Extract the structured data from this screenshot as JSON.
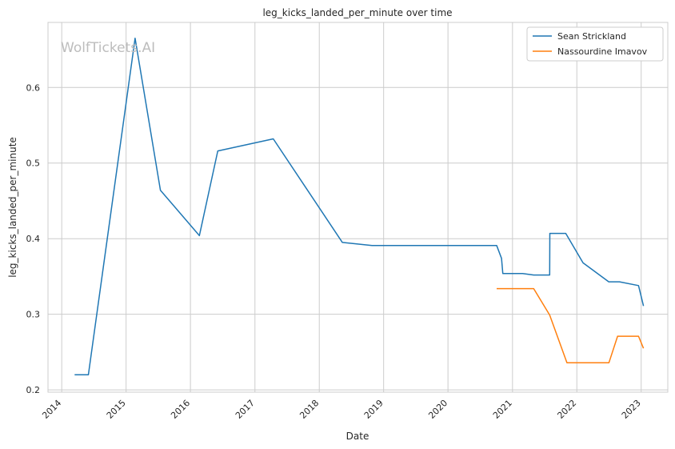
{
  "chart_data": {
    "type": "line",
    "title": "leg_kicks_landed_per_minute over time",
    "xlabel": "Date",
    "ylabel": "leg_kicks_landed_per_minute",
    "watermark": "WolfTickets.AI",
    "xlim": [
      "2013-10-15",
      "2023-06-01"
    ],
    "ylim": [
      0.197,
      0.686
    ],
    "x_ticks": [
      "2014",
      "2015",
      "2016",
      "2017",
      "2018",
      "2019",
      "2020",
      "2021",
      "2022",
      "2023"
    ],
    "y_ticks": [
      "0.2",
      "0.3",
      "0.4",
      "0.5",
      "0.6"
    ],
    "grid": true,
    "legend_position": "top-right",
    "series": [
      {
        "name": "Sean Strickland",
        "color": "#1f77b4",
        "points": [
          [
            "2014-03-15",
            0.22
          ],
          [
            "2014-06-01",
            0.22
          ],
          [
            "2015-02-21",
            0.665
          ],
          [
            "2015-07-15",
            0.464
          ],
          [
            "2016-02-21",
            0.404
          ],
          [
            "2016-06-04",
            0.516
          ],
          [
            "2017-04-15",
            0.532
          ],
          [
            "2018-05-12",
            0.395
          ],
          [
            "2018-10-27",
            0.391
          ],
          [
            "2020-10-03",
            0.391
          ],
          [
            "2020-10-31",
            0.374
          ],
          [
            "2020-11-07",
            0.354
          ],
          [
            "2021-02-27",
            0.354
          ],
          [
            "2021-05-01",
            0.352
          ],
          [
            "2021-07-31",
            0.352
          ],
          [
            "2021-08-01",
            0.407
          ],
          [
            "2021-10-30",
            0.407
          ],
          [
            "2022-02-05",
            0.368
          ],
          [
            "2022-07-01",
            0.343
          ],
          [
            "2022-08-31",
            0.343
          ],
          [
            "2022-12-17",
            0.338
          ],
          [
            "2023-01-14",
            0.311
          ]
        ]
      },
      {
        "name": "Nassourdine Imavov",
        "color": "#ff7f0e",
        "points": [
          [
            "2020-10-03",
            0.334
          ],
          [
            "2021-05-01",
            0.334
          ],
          [
            "2021-07-31",
            0.299
          ],
          [
            "2021-11-06",
            0.236
          ],
          [
            "2022-07-02",
            0.236
          ],
          [
            "2022-08-20",
            0.271
          ],
          [
            "2022-12-17",
            0.271
          ],
          [
            "2023-01-14",
            0.255
          ]
        ]
      }
    ]
  }
}
